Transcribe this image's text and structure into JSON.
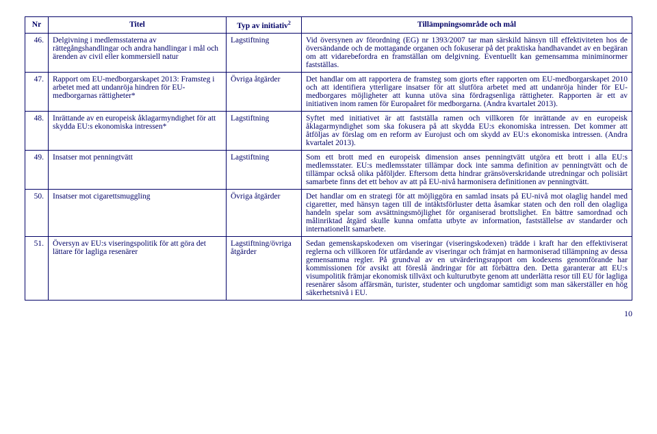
{
  "header": {
    "nr": "Nr",
    "titel": "Titel",
    "typ": "Typ av initiativ",
    "typ_sup": "2",
    "mal": "Tillämpningsområde och mål"
  },
  "rows": [
    {
      "nr": "46.",
      "titel": "Delgivning i medlemsstaterna av rättegångshandlingar och andra handlingar i mål och ärenden av civil eller kommersiell natur",
      "typ": "Lagstiftning",
      "desc": "Vid översynen av förordning (EG) nr 1393/2007 tar man särskild hänsyn till effektiviteten hos de översändande och de mottagande organen och fokuserar på det praktiska handhavandet av en begäran om att vidarebefordra en framställan om delgivning. Eventuellt kan gemensamma miniminormer fastställas."
    },
    {
      "nr": "47.",
      "titel": "Rapport om EU-medborgarskapet 2013: Framsteg i arbetet med att undanröja hindren för EU-medborgarnas rättigheter*",
      "typ": "Övriga åtgärder",
      "desc": "Det handlar om att rapportera de framsteg som gjorts efter rapporten om EU-medborgarskapet 2010 och att identifiera ytterligare insatser för att slutföra arbetet med att undanröja hinder för EU-medborgares möjligheter att kunna utöva sina fördragsenliga rättigheter. Rapporten är ett av initiativen inom ramen för Europaåret för medborgarna. (Andra kvartalet 2013)."
    },
    {
      "nr": "48.",
      "titel": "Inrättande av en europeisk åklagarmyndighet för att skydda EU:s ekonomiska intressen*",
      "typ": "Lagstiftning",
      "desc": "Syftet med initiativet är att fastställa ramen och villkoren för inrättande av en europeisk åklagarmyndighet som ska fokusera på att skydda EU:s ekonomiska intressen. Det kommer att åtföljas av förslag om en reform av Eurojust och om skydd av EU:s ekonomiska intressen. (Andra kvartalet 2013)."
    },
    {
      "nr": "49.",
      "titel": "Insatser mot penningtvätt",
      "typ": "Lagstiftning",
      "desc": "Som ett brott med en europeisk dimension anses penningtvätt utgöra ett brott i alla EU:s medlemsstater. EU:s medlemsstater tillämpar dock inte samma definition av penningtvätt och de tillämpar också olika påföljder. Eftersom detta hindrar gränsöverskridande utredningar och polisiärt samarbete finns det ett behov av att på EU-nivå harmonisera definitionen av penningtvätt."
    },
    {
      "nr": "50.",
      "titel": "Insatser mot cigarettsmuggling",
      "typ": "Övriga åtgärder",
      "desc": "Det handlar om en strategi för att möjliggöra en samlad insats på EU-nivå mot olaglig handel med cigaretter, med hänsyn tagen till de intäktsförluster detta åsamkar staten och den roll den olagliga handeln spelar som avsättningsmöjlighet för organiserad brottslighet. En bättre samordnad och målinriktad åtgärd skulle kunna omfatta utbyte av information, fastställelse av standarder och internationellt samarbete."
    },
    {
      "nr": "51.",
      "titel": "Översyn av EU:s viseringspolitik för att göra det lättare för lagliga resenärer",
      "typ": "Lagstiftning/övriga åtgärder",
      "desc": "Sedan gemenskapskodexen om viseringar (viseringskodexen) trädde i kraft har den effektiviserat reglerna och villkoren för utfärdande av viseringar och främjat en harmoniserad tillämpning av dessa gemensamma regler. På grundval av en utvärderingsrapport om kodexens genomförande har kommissionen för avsikt att föreslå ändringar för att förbättra den. Detta garanterar att EU:s visumpolitik främjar ekonomisk tillväxt och kulturutbyte genom att underlätta resor till EU för lagliga resenärer såsom affärsmän, turister, studenter och ungdomar samtidigt som man säkerställer en hög säkerhetsnivå i EU."
    }
  ],
  "page_number": "10"
}
